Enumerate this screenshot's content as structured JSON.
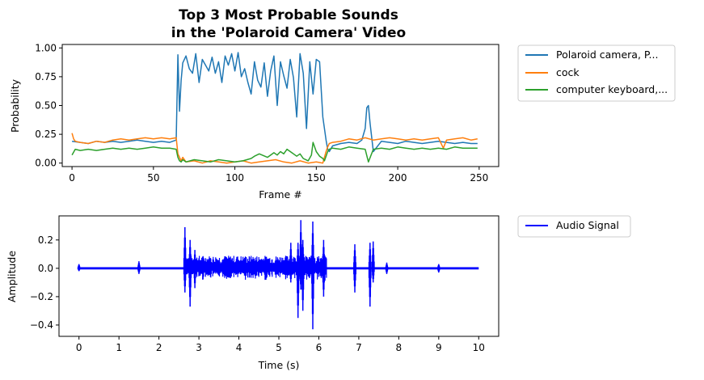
{
  "chart_data": [
    {
      "type": "line",
      "title": "Top 3 Most Probable Sounds",
      "subtitle": "in the 'Polaroid Camera' Video",
      "xlabel": "Frame #",
      "ylabel": "Probability",
      "xlim": [
        -6,
        262
      ],
      "ylim": [
        -0.03,
        1.03
      ],
      "xticks": [
        "0",
        "50",
        "100",
        "150",
        "200",
        "250"
      ],
      "xtick_values": [
        0,
        50,
        100,
        150,
        200,
        250
      ],
      "yticks": [
        "0.00",
        "0.25",
        "0.50",
        "0.75",
        "1.00"
      ],
      "ytick_values": [
        0,
        0.25,
        0.5,
        0.75,
        1.0
      ],
      "grid": false,
      "legend_placement": "outside-upper-right",
      "series": [
        {
          "name": "Polaroid camera, P...",
          "color": "#1f77b4",
          "x": [
            0,
            5,
            10,
            15,
            20,
            25,
            30,
            35,
            40,
            45,
            50,
            55,
            60,
            64,
            65,
            66,
            67,
            68,
            70,
            72,
            74,
            76,
            78,
            80,
            82,
            84,
            86,
            88,
            90,
            92,
            94,
            96,
            98,
            100,
            102,
            104,
            106,
            108,
            110,
            112,
            114,
            116,
            118,
            120,
            122,
            124,
            126,
            128,
            130,
            132,
            134,
            136,
            138,
            140,
            142,
            144,
            146,
            148,
            150,
            152,
            154,
            156,
            157,
            158,
            160,
            165,
            170,
            175,
            178,
            180,
            181,
            182,
            183,
            185,
            190,
            195,
            200,
            205,
            210,
            215,
            220,
            225,
            230,
            235,
            240,
            245,
            249
          ],
          "y": [
            0.19,
            0.18,
            0.17,
            0.19,
            0.18,
            0.19,
            0.18,
            0.19,
            0.2,
            0.19,
            0.18,
            0.19,
            0.18,
            0.2,
            0.94,
            0.45,
            0.72,
            0.87,
            0.93,
            0.82,
            0.78,
            0.95,
            0.7,
            0.9,
            0.85,
            0.8,
            0.92,
            0.78,
            0.88,
            0.7,
            0.93,
            0.85,
            0.95,
            0.8,
            0.96,
            0.75,
            0.82,
            0.7,
            0.6,
            0.88,
            0.72,
            0.66,
            0.87,
            0.58,
            0.8,
            0.93,
            0.5,
            0.88,
            0.76,
            0.65,
            0.9,
            0.74,
            0.4,
            0.95,
            0.78,
            0.3,
            0.88,
            0.6,
            0.9,
            0.88,
            0.4,
            0.2,
            0.12,
            0.1,
            0.15,
            0.17,
            0.18,
            0.17,
            0.2,
            0.3,
            0.48,
            0.5,
            0.35,
            0.1,
            0.19,
            0.18,
            0.17,
            0.19,
            0.18,
            0.17,
            0.18,
            0.19,
            0.18,
            0.17,
            0.18,
            0.17,
            0.17
          ]
        },
        {
          "name": "cock",
          "color": "#ff7f0e",
          "x": [
            0,
            1,
            2,
            5,
            10,
            15,
            20,
            25,
            30,
            35,
            40,
            45,
            50,
            55,
            60,
            64,
            65,
            66,
            67,
            68,
            70,
            75,
            80,
            85,
            90,
            95,
            100,
            105,
            110,
            115,
            120,
            125,
            130,
            135,
            140,
            145,
            150,
            154,
            155,
            156,
            157,
            158,
            160,
            165,
            170,
            175,
            180,
            185,
            190,
            195,
            200,
            205,
            210,
            215,
            220,
            225,
            228,
            230,
            235,
            240,
            245,
            249
          ],
          "y": [
            0.26,
            0.21,
            0.19,
            0.18,
            0.17,
            0.19,
            0.18,
            0.2,
            0.21,
            0.2,
            0.21,
            0.22,
            0.21,
            0.22,
            0.21,
            0.22,
            0.08,
            0.05,
            0.02,
            0.05,
            0.01,
            0.02,
            0.0,
            0.02,
            0.01,
            0.0,
            0.01,
            0.02,
            0.0,
            0.01,
            0.02,
            0.03,
            0.01,
            0.0,
            0.02,
            0.0,
            0.01,
            0.0,
            0.05,
            0.1,
            0.14,
            0.17,
            0.18,
            0.19,
            0.21,
            0.2,
            0.22,
            0.2,
            0.21,
            0.22,
            0.21,
            0.2,
            0.21,
            0.2,
            0.21,
            0.22,
            0.13,
            0.2,
            0.21,
            0.22,
            0.2,
            0.21
          ]
        },
        {
          "name": "computer keyboard,...",
          "color": "#2ca02c",
          "x": [
            0,
            2,
            5,
            10,
            15,
            20,
            25,
            30,
            35,
            40,
            45,
            50,
            55,
            60,
            64,
            65,
            66,
            67,
            68,
            70,
            75,
            80,
            85,
            90,
            95,
            100,
            105,
            110,
            112,
            115,
            120,
            124,
            126,
            128,
            130,
            132,
            135,
            138,
            140,
            142,
            145,
            147,
            148,
            150,
            152,
            154,
            155,
            156,
            157,
            158,
            160,
            165,
            170,
            175,
            180,
            182,
            185,
            190,
            195,
            200,
            205,
            210,
            215,
            220,
            225,
            230,
            235,
            240,
            245,
            249
          ],
          "y": [
            0.07,
            0.12,
            0.11,
            0.12,
            0.11,
            0.12,
            0.13,
            0.12,
            0.13,
            0.12,
            0.13,
            0.14,
            0.13,
            0.13,
            0.12,
            0.05,
            0.02,
            0.01,
            0.03,
            0.01,
            0.03,
            0.02,
            0.01,
            0.03,
            0.02,
            0.01,
            0.02,
            0.04,
            0.06,
            0.08,
            0.05,
            0.09,
            0.07,
            0.1,
            0.08,
            0.12,
            0.09,
            0.06,
            0.08,
            0.04,
            0.02,
            0.07,
            0.18,
            0.1,
            0.06,
            0.04,
            0.02,
            0.06,
            0.1,
            0.12,
            0.13,
            0.12,
            0.14,
            0.13,
            0.12,
            0.01,
            0.12,
            0.13,
            0.12,
            0.14,
            0.13,
            0.12,
            0.13,
            0.12,
            0.13,
            0.12,
            0.14,
            0.13,
            0.13,
            0.13
          ]
        }
      ]
    },
    {
      "type": "line",
      "title": "",
      "xlabel": "Time (s)",
      "ylabel": "Amplitude",
      "xlim": [
        -0.5,
        10.5
      ],
      "ylim": [
        -0.48,
        0.37
      ],
      "xticks": [
        "0",
        "1",
        "2",
        "3",
        "4",
        "5",
        "6",
        "7",
        "8",
        "9",
        "10"
      ],
      "xtick_values": [
        0,
        1,
        2,
        3,
        4,
        5,
        6,
        7,
        8,
        9,
        10
      ],
      "yticks": [
        "−0.4",
        "−0.2",
        "0.0",
        "0.2"
      ],
      "ytick_values": [
        -0.4,
        -0.2,
        0,
        0.2
      ],
      "grid": false,
      "legend_placement": "outside-upper-right",
      "series": [
        {
          "name": "Audio Signal",
          "color": "#0000ff",
          "bursts": [
            {
              "t": 0.0,
              "min": -0.02,
              "max": 0.03
            },
            {
              "t": 1.5,
              "min": -0.04,
              "max": 0.05
            },
            {
              "t": 2.65,
              "min": -0.17,
              "max": 0.29
            },
            {
              "t": 2.78,
              "min": -0.27,
              "max": 0.2
            },
            {
              "t": 2.9,
              "min": -0.14,
              "max": 0.13
            },
            {
              "t": 5.3,
              "min": -0.1,
              "max": 0.18
            },
            {
              "t": 5.48,
              "min": -0.35,
              "max": 0.18
            },
            {
              "t": 5.55,
              "min": -0.15,
              "max": 0.34
            },
            {
              "t": 5.6,
              "min": -0.3,
              "max": 0.2
            },
            {
              "t": 5.85,
              "min": -0.43,
              "max": 0.33
            },
            {
              "t": 6.12,
              "min": -0.2,
              "max": 0.2
            },
            {
              "t": 6.9,
              "min": -0.17,
              "max": 0.17
            },
            {
              "t": 7.28,
              "min": -0.27,
              "max": 0.18
            },
            {
              "t": 7.36,
              "min": -0.1,
              "max": 0.19
            },
            {
              "t": 7.7,
              "min": -0.04,
              "max": 0.04
            },
            {
              "t": 9.0,
              "min": -0.03,
              "max": 0.03
            }
          ],
          "envelope": {
            "t_start": 2.65,
            "t_end": 6.2,
            "amplitude": 0.09
          },
          "baseline_amplitude": 0.008
        }
      ]
    }
  ]
}
